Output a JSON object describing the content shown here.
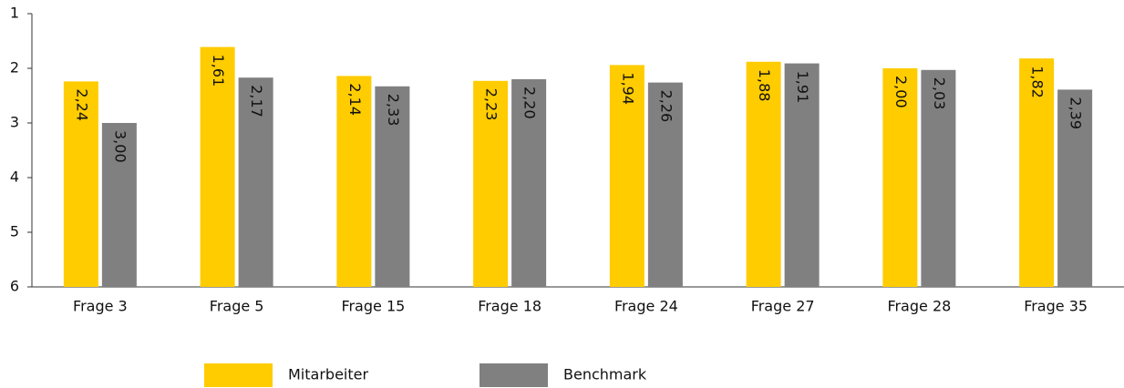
{
  "chart_data": {
    "type": "bar",
    "categories": [
      "Frage 3",
      "Frage 5",
      "Frage 15",
      "Frage 18",
      "Frage 24",
      "Frage 27",
      "Frage 28",
      "Frage 35"
    ],
    "series": [
      {
        "name": "Mitarbeiter",
        "color": "#ffcc00",
        "values": [
          2.24,
          1.61,
          2.14,
          2.23,
          1.94,
          1.88,
          2.0,
          1.82
        ],
        "value_labels": [
          "2,24",
          "1,61",
          "2,14",
          "2,23",
          "1,94",
          "1,88",
          "2,00",
          "1,82"
        ]
      },
      {
        "name": "Benchmark",
        "color": "#808080",
        "values": [
          3.0,
          2.17,
          2.33,
          2.2,
          2.26,
          1.91,
          2.03,
          2.39
        ],
        "value_labels": [
          "3,00",
          "2,17",
          "2,33",
          "2,20",
          "2,26",
          "1,91",
          "2,03",
          "2,39"
        ]
      }
    ],
    "ylim": [
      1,
      6
    ],
    "yticks": [
      1,
      2,
      3,
      4,
      5,
      6
    ],
    "y_inverted": true,
    "grid": false,
    "legend": "bottom"
  }
}
